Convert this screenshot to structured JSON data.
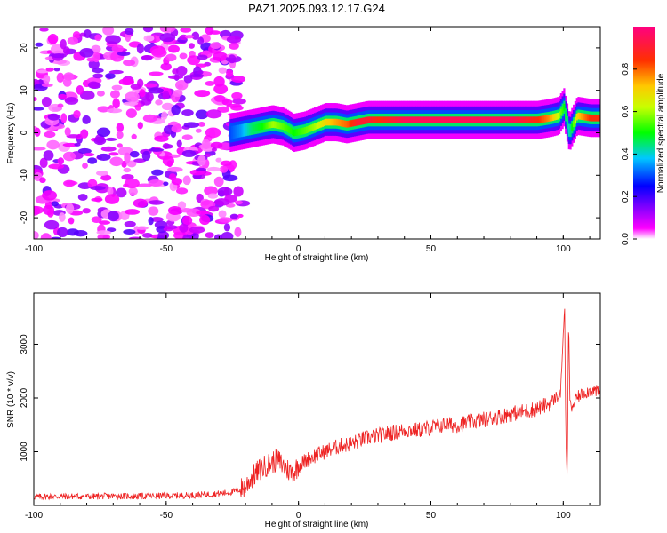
{
  "title": "PAZ1.2025.093.12.17.G24",
  "chart_data": [
    {
      "type": "heatmap",
      "xlabel": "Height of straight line (km)",
      "ylabel": "Frequency (Hz)",
      "xlim": [
        -100,
        114
      ],
      "ylim": [
        -25,
        25
      ],
      "xticks": [
        -100,
        -50,
        0,
        50,
        100
      ],
      "yticks": [
        -20,
        -10,
        0,
        10,
        20
      ],
      "colorbar": {
        "label": "Normalized spectral amplitude",
        "range": [
          0,
          1
        ],
        "ticks": [
          "0.0",
          "0.2",
          "0.4",
          "0.6",
          "0.8"
        ],
        "colors": [
          "#ffffff",
          "#ff00ff",
          "#8000ff",
          "#0000ff",
          "#00ffff",
          "#00ff00",
          "#ffff00",
          "#ff8000",
          "#ff0000",
          "#ff0080"
        ]
      },
      "noise_region": {
        "x_range": [
          -100,
          -25
        ],
        "freq_range": [
          -25,
          25
        ],
        "amplitude": "low (0.05-0.2)"
      },
      "signal_ridge": {
        "x": [
          -26,
          -22,
          -18,
          -14,
          -10,
          -6,
          -2,
          2,
          6,
          10,
          14,
          18,
          22,
          26,
          30,
          40,
          60,
          80,
          90,
          95,
          98,
          100,
          102,
          105,
          110,
          114
        ],
        "freq": [
          0,
          0.5,
          1,
          1.5,
          2,
          1.5,
          0,
          0.5,
          1.5,
          2.5,
          2.5,
          2,
          2.5,
          3,
          3,
          3,
          3,
          3,
          3,
          3.5,
          4,
          6,
          0,
          4,
          3.5,
          3.5
        ],
        "amplitude": [
          0.3,
          0.35,
          0.45,
          0.5,
          0.6,
          0.55,
          0.5,
          0.55,
          0.6,
          0.7,
          0.75,
          0.8,
          0.9,
          0.9,
          0.85,
          0.95,
          0.95,
          0.95,
          0.85,
          0.75,
          0.6,
          0.5,
          0.4,
          0.7,
          0.85,
          0.85
        ]
      }
    },
    {
      "type": "line",
      "xlabel": "Height of straight line (km)",
      "ylabel": "SNR (10 * v/v)",
      "xlim": [
        -100,
        114
      ],
      "ylim": [
        0,
        3950
      ],
      "xticks": [
        -100,
        -50,
        0,
        50,
        100
      ],
      "yticks": [
        1000,
        2000,
        3000
      ],
      "series": [
        {
          "color": "#ee2222",
          "x": [
            -100,
            -90,
            -80,
            -70,
            -60,
            -50,
            -40,
            -30,
            -25,
            -22,
            -20,
            -18,
            -15,
            -12,
            -10,
            -8,
            -5,
            -2,
            0,
            5,
            10,
            15,
            20,
            25,
            30,
            35,
            40,
            45,
            50,
            55,
            60,
            65,
            70,
            75,
            80,
            85,
            90,
            95,
            97,
            99,
            100,
            100.5,
            101,
            101.5,
            102,
            102.5,
            103,
            105,
            108,
            111,
            114
          ],
          "y": [
            160,
            170,
            165,
            175,
            170,
            180,
            190,
            220,
            250,
            300,
            350,
            500,
            650,
            750,
            800,
            850,
            700,
            600,
            750,
            900,
            1000,
            1100,
            1150,
            1250,
            1300,
            1350,
            1400,
            1400,
            1450,
            1500,
            1500,
            1550,
            1600,
            1650,
            1700,
            1750,
            1800,
            1900,
            2000,
            2100,
            3200,
            3700,
            1200,
            400,
            3500,
            2000,
            1800,
            2000,
            2100,
            2150,
            2100
          ]
        }
      ]
    }
  ]
}
